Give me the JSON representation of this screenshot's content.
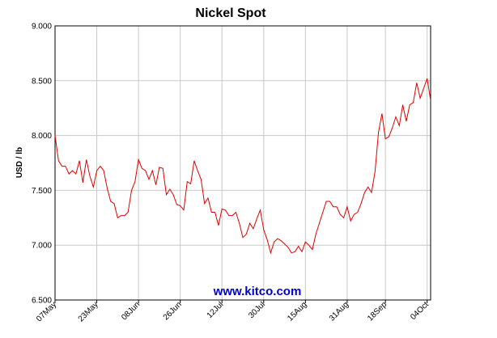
{
  "chart_data": {
    "type": "line",
    "title": "Nickel Spot",
    "y_label": "USD / lb",
    "watermark": "www.kitco.com",
    "categories": [
      "07May",
      null,
      null,
      null,
      null,
      null,
      null,
      null,
      null,
      null,
      null,
      null,
      "23May",
      null,
      null,
      null,
      null,
      null,
      null,
      null,
      null,
      null,
      null,
      null,
      "08Jun",
      null,
      null,
      null,
      null,
      null,
      null,
      null,
      null,
      null,
      null,
      null,
      "26Jun",
      null,
      null,
      null,
      null,
      null,
      null,
      null,
      null,
      null,
      null,
      null,
      "12Jul",
      null,
      null,
      null,
      null,
      null,
      null,
      null,
      null,
      null,
      null,
      null,
      "30Jul",
      null,
      null,
      null,
      null,
      null,
      null,
      null,
      null,
      null,
      null,
      null,
      "15Aug",
      null,
      null,
      null,
      null,
      null,
      null,
      null,
      null,
      null,
      null,
      null,
      "31Aug",
      null,
      null,
      null,
      null,
      null,
      null,
      null,
      null,
      null,
      null,
      "18Sep",
      null,
      null,
      null,
      null,
      null,
      null,
      null,
      null,
      null,
      null,
      null,
      "04Oct",
      null
    ],
    "series": [
      {
        "name": "Nickel",
        "color": "#e00000",
        "values": [
          8.0,
          7.77,
          7.72,
          7.72,
          7.65,
          7.68,
          7.65,
          7.77,
          7.57,
          7.78,
          7.63,
          7.53,
          7.68,
          7.72,
          7.68,
          7.52,
          7.4,
          7.38,
          7.25,
          7.27,
          7.27,
          7.3,
          7.5,
          7.58,
          7.78,
          7.7,
          7.68,
          7.6,
          7.68,
          7.55,
          7.71,
          7.7,
          7.46,
          7.51,
          7.46,
          7.37,
          7.36,
          7.32,
          7.58,
          7.56,
          7.77,
          7.68,
          7.6,
          7.38,
          7.43,
          7.3,
          7.3,
          7.18,
          7.33,
          7.32,
          7.27,
          7.27,
          7.3,
          7.2,
          7.07,
          7.1,
          7.2,
          7.15,
          7.24,
          7.32,
          7.14,
          7.05,
          6.93,
          7.03,
          7.06,
          7.04,
          7.01,
          6.98,
          6.93,
          6.94,
          6.99,
          6.94,
          7.03,
          7.0,
          6.96,
          7.1,
          7.2,
          7.3,
          7.4,
          7.4,
          7.35,
          7.35,
          7.28,
          7.25,
          7.35,
          7.22,
          7.28,
          7.3,
          7.38,
          7.48,
          7.53,
          7.48,
          7.67,
          8.03,
          8.2,
          7.97,
          7.99,
          8.07,
          8.17,
          8.09,
          8.28,
          8.13,
          8.28,
          8.3,
          8.48,
          8.34,
          8.43,
          8.52,
          8.32
        ]
      }
    ],
    "ylim": [
      6.5,
      9.0
    ],
    "yticks": [
      {
        "value": 6.5,
        "label": "6.500"
      },
      {
        "value": 7.0,
        "label": "7.000"
      },
      {
        "value": 7.5,
        "label": "7.500"
      },
      {
        "value": 8.0,
        "label": "8.000"
      },
      {
        "value": 8.5,
        "label": "8.500"
      },
      {
        "value": 9.0,
        "label": "9.000"
      }
    ],
    "grid": true
  }
}
